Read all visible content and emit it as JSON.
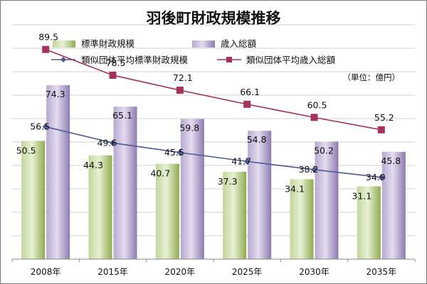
{
  "chart_data": {
    "type": "bar",
    "title": "羽後町財政規模推移",
    "unit_note": "（単位：億円）",
    "categories": [
      "2008年",
      "2015年",
      "2020年",
      "2025年",
      "2030年",
      "2035年"
    ],
    "ylim": [
      0,
      100
    ],
    "grid": true,
    "legend_position": "top",
    "series": [
      {
        "name": "標準財政規模",
        "kind": "bar",
        "color": "#8fac4f",
        "values": [
          50.5,
          44.3,
          40.7,
          37.3,
          34.1,
          31.1
        ]
      },
      {
        "name": "歳入総額",
        "kind": "bar",
        "color": "#8d7bb0",
        "values": [
          74.3,
          65.1,
          59.8,
          54.8,
          50.2,
          45.8
        ]
      },
      {
        "name": "類似団体平均標準財政規模",
        "kind": "line",
        "color": "#4c5a95",
        "marker": "diamond",
        "values": [
          56.5,
          49.6,
          45.5,
          41.7,
          38.2,
          34.9
        ]
      },
      {
        "name": "類似団体平均歳入総額",
        "kind": "line",
        "color": "#a3325c",
        "marker": "square",
        "values": [
          89.5,
          78.5,
          72.1,
          66.1,
          60.5,
          55.2
        ]
      }
    ]
  }
}
